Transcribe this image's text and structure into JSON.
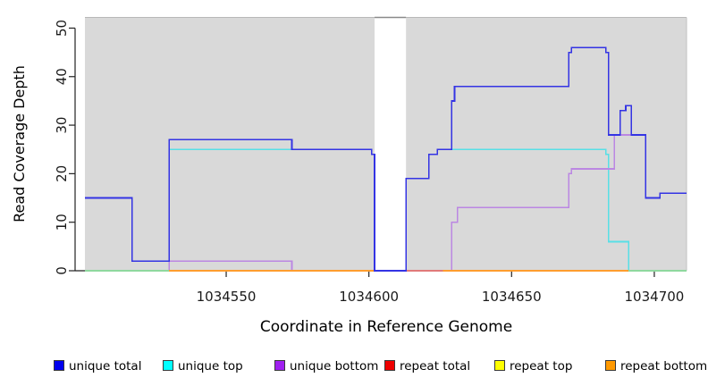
{
  "y_axis": {
    "label": "Read Coverage Depth",
    "tick_labels": [
      "0",
      "10",
      "20",
      "30",
      "40",
      "50"
    ],
    "tick_values": [
      0,
      10,
      20,
      30,
      40,
      50
    ]
  },
  "x_axis": {
    "label": "Coordinate in Reference Genome",
    "tick_labels": [
      "1034550",
      "1034600",
      "1034650",
      "1034700"
    ],
    "tick_values": [
      1034550,
      1034600,
      1034650,
      1034700
    ]
  },
  "legend": {
    "items": [
      {
        "label": "unique total",
        "color": "#0000ee"
      },
      {
        "label": "unique top",
        "color": "#00ffff"
      },
      {
        "label": "unique bottom",
        "color": "#a020f0"
      },
      {
        "label": "repeat total",
        "color": "#ee0000"
      },
      {
        "label": "repeat top",
        "color": "#ffff00"
      },
      {
        "label": "repeat bottom",
        "color": "#ff9900"
      }
    ]
  },
  "chart_data": {
    "type": "line",
    "title": "",
    "xlabel": "Coordinate in Reference Genome",
    "ylabel": "Read Coverage Depth",
    "xlim": [
      1034500.5,
      1034711.3
    ],
    "ylim": [
      0,
      52.2
    ],
    "grid": false,
    "legend_position": "bottom",
    "plot_background": "#d9d9d9",
    "masked_gap_region": {
      "x1": 1034602,
      "x2": 1034613
    },
    "series": [
      {
        "name": "unique total",
        "color": "#3434e4",
        "steps": [
          [
            1034500,
            15
          ],
          [
            1034517,
            2
          ],
          [
            1034530,
            27
          ],
          [
            1034573,
            25
          ],
          [
            1034601,
            24
          ],
          [
            1034602,
            0
          ],
          [
            1034613,
            19
          ],
          [
            1034621,
            24
          ],
          [
            1034624,
            25
          ],
          [
            1034629,
            35
          ],
          [
            1034630,
            38
          ],
          [
            1034670,
            45
          ],
          [
            1034671,
            46
          ],
          [
            1034683,
            45
          ],
          [
            1034684,
            28
          ],
          [
            1034688,
            33
          ],
          [
            1034690,
            34
          ],
          [
            1034692,
            28
          ],
          [
            1034697,
            15
          ],
          [
            1034702,
            16
          ]
        ],
        "x_end": 1034711.3
      },
      {
        "name": "unique top",
        "color": "#58dfe6",
        "steps": [
          [
            1034500,
            0
          ],
          [
            1034530,
            25
          ],
          [
            1034601,
            24
          ],
          [
            1034602,
            0
          ],
          [
            1034613,
            19
          ],
          [
            1034621,
            24
          ],
          [
            1034624,
            25
          ],
          [
            1034683,
            24
          ],
          [
            1034684,
            6
          ],
          [
            1034691,
            0
          ]
        ],
        "x_end": 1034711.3
      },
      {
        "name": "unique bottom",
        "color": "#bb87e2",
        "steps": [
          [
            1034500,
            0
          ],
          [
            1034530,
            2
          ],
          [
            1034573,
            0
          ],
          [
            1034629,
            10
          ],
          [
            1034631,
            13
          ],
          [
            1034670,
            20
          ],
          [
            1034671,
            21
          ],
          [
            1034686,
            28
          ],
          [
            1034697,
            15
          ],
          [
            1034702,
            16
          ]
        ],
        "x_end": 1034711.3
      },
      {
        "name": "repeat total",
        "color": "#e07a7a",
        "steps": [
          [
            1034613,
            0
          ]
        ],
        "x_end": 1034626
      },
      {
        "name": "repeat top",
        "color": "#f5f06a",
        "steps": [
          [
            1034500,
            0
          ]
        ],
        "x_end": 1034711.3
      },
      {
        "name": "repeat bottom",
        "color": "#ff9d2e",
        "steps": [
          [
            1034530,
            0
          ]
        ],
        "x_end": 1034691
      }
    ],
    "baseline_overlap_segments": {
      "color": "#8fd89f",
      "segments": [
        [
          1034500.5,
          1034530
        ],
        [
          1034691,
          1034711.3
        ]
      ]
    }
  }
}
